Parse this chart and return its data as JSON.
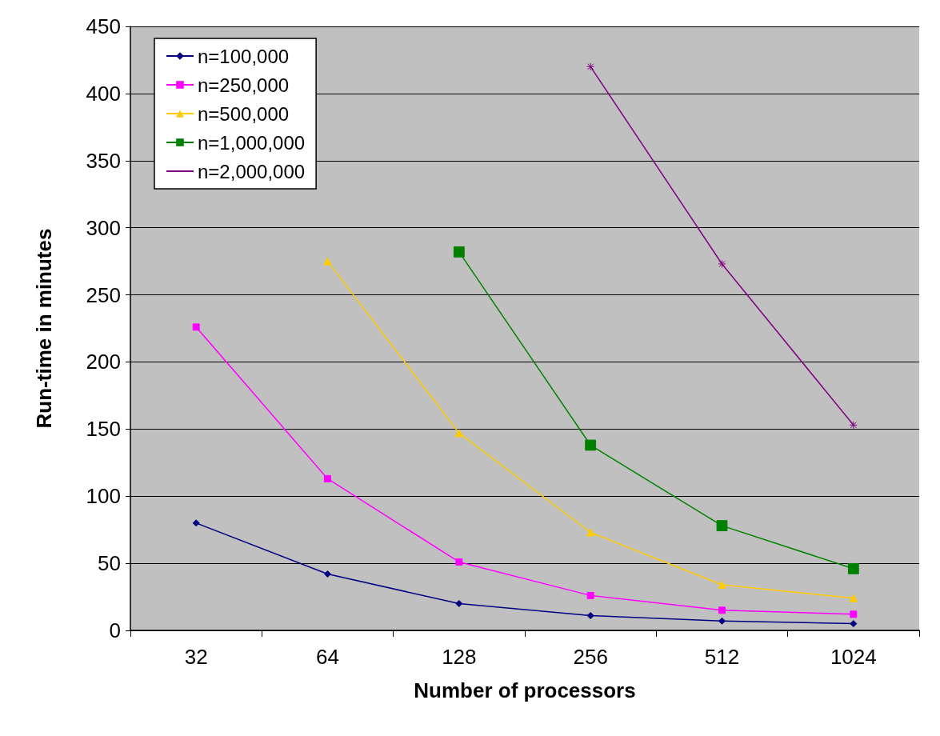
{
  "chart_data": {
    "type": "line",
    "xlabel": "Number of processors",
    "ylabel": "Run-time in minutes",
    "categories": [
      "32",
      "64",
      "128",
      "256",
      "512",
      "1024"
    ],
    "series": [
      {
        "name": "n=100,000",
        "color": "#000080",
        "marker": "diamond",
        "values": [
          80,
          42,
          20,
          11,
          7,
          5
        ]
      },
      {
        "name": "n=250,000",
        "color": "#ff00ff",
        "marker": "square",
        "values": [
          226,
          113,
          51,
          26,
          15,
          12
        ]
      },
      {
        "name": "n=500,000",
        "color": "#ffcc00",
        "marker": "triangle",
        "values": [
          null,
          275,
          147,
          73,
          34,
          24
        ]
      },
      {
        "name": "n=1,000,000",
        "color": "#008000",
        "marker": "square",
        "values": [
          null,
          null,
          282,
          138,
          78,
          46
        ]
      },
      {
        "name": "n=2,000,000",
        "color": "#800080",
        "marker": "cross",
        "values": [
          null,
          null,
          null,
          420,
          273,
          153
        ]
      }
    ],
    "ylim": [
      0,
      450
    ],
    "yticks": [
      0,
      50,
      100,
      150,
      200,
      250,
      300,
      350,
      400,
      450
    ],
    "grid": "y",
    "legend": "top left",
    "line_style": "solid"
  }
}
